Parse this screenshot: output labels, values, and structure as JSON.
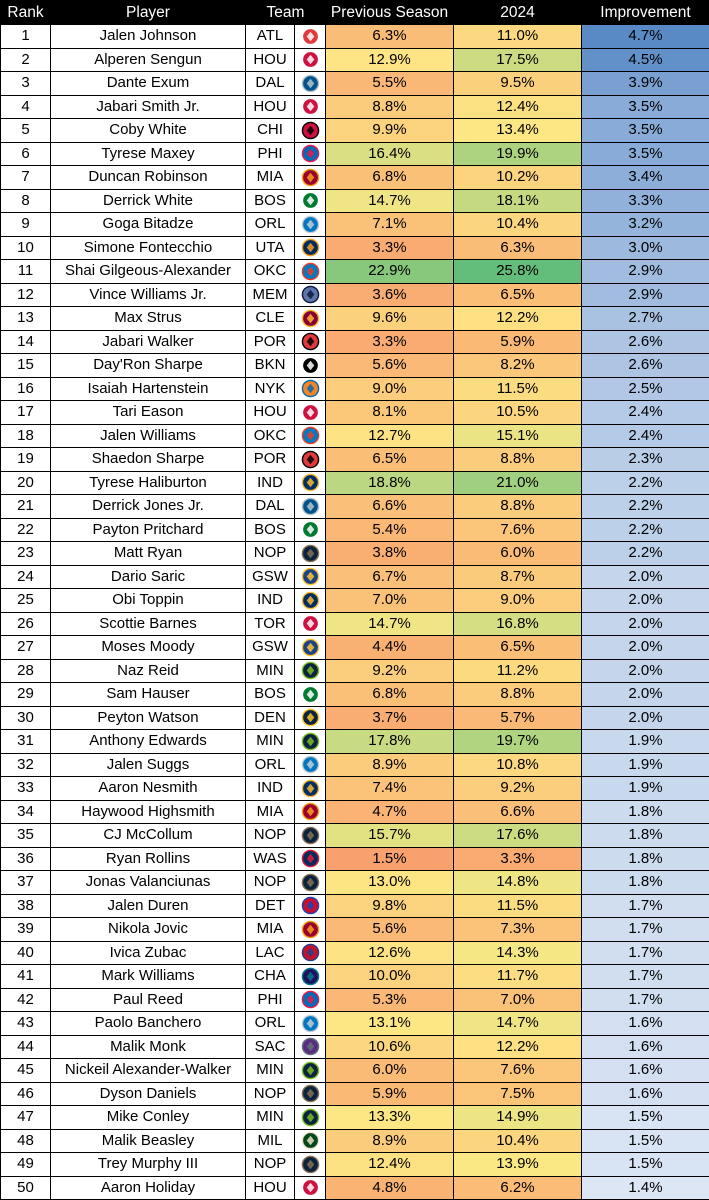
{
  "chart_data": {
    "type": "table",
    "columns": [
      "Rank",
      "Player",
      "Team",
      "",
      "Previous Season",
      "2024",
      "Improvement"
    ],
    "rows": [
      {
        "rank": "1",
        "player": "Jalen Johnson",
        "team": "ATL",
        "prev": "6.3%",
        "cur": "11.0%",
        "imp": "4.7%"
      },
      {
        "rank": "2",
        "player": "Alperen Sengun",
        "team": "HOU",
        "prev": "12.9%",
        "cur": "17.5%",
        "imp": "4.5%"
      },
      {
        "rank": "3",
        "player": "Dante Exum",
        "team": "DAL",
        "prev": "5.5%",
        "cur": "9.5%",
        "imp": "3.9%"
      },
      {
        "rank": "4",
        "player": "Jabari Smith Jr.",
        "team": "HOU",
        "prev": "8.8%",
        "cur": "12.4%",
        "imp": "3.5%"
      },
      {
        "rank": "5",
        "player": "Coby White",
        "team": "CHI",
        "prev": "9.9%",
        "cur": "13.4%",
        "imp": "3.5%"
      },
      {
        "rank": "6",
        "player": "Tyrese Maxey",
        "team": "PHI",
        "prev": "16.4%",
        "cur": "19.9%",
        "imp": "3.5%"
      },
      {
        "rank": "7",
        "player": "Duncan Robinson",
        "team": "MIA",
        "prev": "6.8%",
        "cur": "10.2%",
        "imp": "3.4%"
      },
      {
        "rank": "8",
        "player": "Derrick White",
        "team": "BOS",
        "prev": "14.7%",
        "cur": "18.1%",
        "imp": "3.3%"
      },
      {
        "rank": "9",
        "player": "Goga Bitadze",
        "team": "ORL",
        "prev": "7.1%",
        "cur": "10.4%",
        "imp": "3.2%"
      },
      {
        "rank": "10",
        "player": "Simone Fontecchio",
        "team": "UTA",
        "prev": "3.3%",
        "cur": "6.3%",
        "imp": "3.0%"
      },
      {
        "rank": "11",
        "player": "Shai Gilgeous-Alexander",
        "team": "OKC",
        "prev": "22.9%",
        "cur": "25.8%",
        "imp": "2.9%"
      },
      {
        "rank": "12",
        "player": "Vince Williams Jr.",
        "team": "MEM",
        "prev": "3.6%",
        "cur": "6.5%",
        "imp": "2.9%"
      },
      {
        "rank": "13",
        "player": "Max Strus",
        "team": "CLE",
        "prev": "9.6%",
        "cur": "12.2%",
        "imp": "2.7%"
      },
      {
        "rank": "14",
        "player": "Jabari Walker",
        "team": "POR",
        "prev": "3.3%",
        "cur": "5.9%",
        "imp": "2.6%"
      },
      {
        "rank": "15",
        "player": "Day'Ron Sharpe",
        "team": "BKN",
        "prev": "5.6%",
        "cur": "8.2%",
        "imp": "2.6%"
      },
      {
        "rank": "16",
        "player": "Isaiah Hartenstein",
        "team": "NYK",
        "prev": "9.0%",
        "cur": "11.5%",
        "imp": "2.5%"
      },
      {
        "rank": "17",
        "player": "Tari Eason",
        "team": "HOU",
        "prev": "8.1%",
        "cur": "10.5%",
        "imp": "2.4%"
      },
      {
        "rank": "18",
        "player": "Jalen Williams",
        "team": "OKC",
        "prev": "12.7%",
        "cur": "15.1%",
        "imp": "2.4%"
      },
      {
        "rank": "19",
        "player": "Shaedon Sharpe",
        "team": "POR",
        "prev": "6.5%",
        "cur": "8.8%",
        "imp": "2.3%"
      },
      {
        "rank": "20",
        "player": "Tyrese Haliburton",
        "team": "IND",
        "prev": "18.8%",
        "cur": "21.0%",
        "imp": "2.2%"
      },
      {
        "rank": "21",
        "player": "Derrick Jones Jr.",
        "team": "DAL",
        "prev": "6.6%",
        "cur": "8.8%",
        "imp": "2.2%"
      },
      {
        "rank": "22",
        "player": "Payton Pritchard",
        "team": "BOS",
        "prev": "5.4%",
        "cur": "7.6%",
        "imp": "2.2%"
      },
      {
        "rank": "23",
        "player": "Matt Ryan",
        "team": "NOP",
        "prev": "3.8%",
        "cur": "6.0%",
        "imp": "2.2%"
      },
      {
        "rank": "24",
        "player": "Dario Saric",
        "team": "GSW",
        "prev": "6.7%",
        "cur": "8.7%",
        "imp": "2.0%"
      },
      {
        "rank": "25",
        "player": "Obi Toppin",
        "team": "IND",
        "prev": "7.0%",
        "cur": "9.0%",
        "imp": "2.0%"
      },
      {
        "rank": "26",
        "player": "Scottie Barnes",
        "team": "TOR",
        "prev": "14.7%",
        "cur": "16.8%",
        "imp": "2.0%"
      },
      {
        "rank": "27",
        "player": "Moses Moody",
        "team": "GSW",
        "prev": "4.4%",
        "cur": "6.5%",
        "imp": "2.0%"
      },
      {
        "rank": "28",
        "player": "Naz Reid",
        "team": "MIN",
        "prev": "9.2%",
        "cur": "11.2%",
        "imp": "2.0%"
      },
      {
        "rank": "29",
        "player": "Sam Hauser",
        "team": "BOS",
        "prev": "6.8%",
        "cur": "8.8%",
        "imp": "2.0%"
      },
      {
        "rank": "30",
        "player": "Peyton Watson",
        "team": "DEN",
        "prev": "3.7%",
        "cur": "5.7%",
        "imp": "2.0%"
      },
      {
        "rank": "31",
        "player": "Anthony Edwards",
        "team": "MIN",
        "prev": "17.8%",
        "cur": "19.7%",
        "imp": "1.9%"
      },
      {
        "rank": "32",
        "player": "Jalen Suggs",
        "team": "ORL",
        "prev": "8.9%",
        "cur": "10.8%",
        "imp": "1.9%"
      },
      {
        "rank": "33",
        "player": "Aaron Nesmith",
        "team": "IND",
        "prev": "7.4%",
        "cur": "9.2%",
        "imp": "1.9%"
      },
      {
        "rank": "34",
        "player": "Haywood Highsmith",
        "team": "MIA",
        "prev": "4.7%",
        "cur": "6.6%",
        "imp": "1.8%"
      },
      {
        "rank": "35",
        "player": "CJ McCollum",
        "team": "NOP",
        "prev": "15.7%",
        "cur": "17.6%",
        "imp": "1.8%"
      },
      {
        "rank": "36",
        "player": "Ryan Rollins",
        "team": "WAS",
        "prev": "1.5%",
        "cur": "3.3%",
        "imp": "1.8%"
      },
      {
        "rank": "37",
        "player": "Jonas Valanciunas",
        "team": "NOP",
        "prev": "13.0%",
        "cur": "14.8%",
        "imp": "1.8%"
      },
      {
        "rank": "38",
        "player": "Jalen Duren",
        "team": "DET",
        "prev": "9.8%",
        "cur": "11.5%",
        "imp": "1.7%"
      },
      {
        "rank": "39",
        "player": "Nikola Jovic",
        "team": "MIA",
        "prev": "5.6%",
        "cur": "7.3%",
        "imp": "1.7%"
      },
      {
        "rank": "40",
        "player": "Ivica Zubac",
        "team": "LAC",
        "prev": "12.6%",
        "cur": "14.3%",
        "imp": "1.7%"
      },
      {
        "rank": "41",
        "player": "Mark Williams",
        "team": "CHA",
        "prev": "10.0%",
        "cur": "11.7%",
        "imp": "1.7%"
      },
      {
        "rank": "42",
        "player": "Paul Reed",
        "team": "PHI",
        "prev": "5.3%",
        "cur": "7.0%",
        "imp": "1.7%"
      },
      {
        "rank": "43",
        "player": "Paolo Banchero",
        "team": "ORL",
        "prev": "13.1%",
        "cur": "14.7%",
        "imp": "1.6%"
      },
      {
        "rank": "44",
        "player": "Malik Monk",
        "team": "SAC",
        "prev": "10.6%",
        "cur": "12.2%",
        "imp": "1.6%"
      },
      {
        "rank": "45",
        "player": "Nickeil Alexander-Walker",
        "team": "MIN",
        "prev": "6.0%",
        "cur": "7.6%",
        "imp": "1.6%"
      },
      {
        "rank": "46",
        "player": "Dyson Daniels",
        "team": "NOP",
        "prev": "5.9%",
        "cur": "7.5%",
        "imp": "1.6%"
      },
      {
        "rank": "47",
        "player": "Mike Conley",
        "team": "MIN",
        "prev": "13.3%",
        "cur": "14.9%",
        "imp": "1.5%"
      },
      {
        "rank": "48",
        "player": "Malik Beasley",
        "team": "MIL",
        "prev": "8.9%",
        "cur": "10.4%",
        "imp": "1.5%"
      },
      {
        "rank": "49",
        "player": "Trey Murphy III",
        "team": "NOP",
        "prev": "12.4%",
        "cur": "13.9%",
        "imp": "1.5%"
      },
      {
        "rank": "50",
        "player": "Aaron Holiday",
        "team": "HOU",
        "prev": "4.8%",
        "cur": "6.2%",
        "imp": "1.4%"
      }
    ]
  },
  "team_colors": {
    "ATL": {
      "primary": "#E03A3E",
      "secondary": "#ffffff",
      "icon": "atlanta-hawks-logo-icon"
    },
    "HOU": {
      "primary": "#CE1141",
      "secondary": "#ffffff",
      "icon": "houston-rockets-logo-icon"
    },
    "DAL": {
      "primary": "#00538C",
      "secondary": "#B8C4CA",
      "icon": "dallas-mavericks-logo-icon"
    },
    "CHI": {
      "primary": "#CE1141",
      "secondary": "#000000",
      "icon": "chicago-bulls-logo-icon"
    },
    "PHI": {
      "primary": "#006BB6",
      "secondary": "#ED174C",
      "icon": "philadelphia-76ers-logo-icon"
    },
    "MIA": {
      "primary": "#98002E",
      "secondary": "#F9A01B",
      "icon": "miami-heat-logo-icon"
    },
    "BOS": {
      "primary": "#007A33",
      "secondary": "#ffffff",
      "icon": "boston-celtics-logo-icon"
    },
    "ORL": {
      "primary": "#0077C0",
      "secondary": "#C4CED4",
      "icon": "orlando-magic-logo-icon"
    },
    "UTA": {
      "primary": "#002B5C",
      "secondary": "#F9A01B",
      "icon": "utah-jazz-logo-icon"
    },
    "OKC": {
      "primary": "#007AC1",
      "secondary": "#EF3B24",
      "icon": "okc-thunder-logo-icon"
    },
    "MEM": {
      "primary": "#5D76A9",
      "secondary": "#12173F",
      "icon": "memphis-grizzlies-logo-icon"
    },
    "CLE": {
      "primary": "#860038",
      "secondary": "#FDBB30",
      "icon": "cleveland-cavaliers-logo-icon"
    },
    "POR": {
      "primary": "#E03A3E",
      "secondary": "#000000",
      "icon": "portland-trail-blazers-logo-icon"
    },
    "BKN": {
      "primary": "#000000",
      "secondary": "#ffffff",
      "icon": "brooklyn-nets-logo-icon"
    },
    "NYK": {
      "primary": "#F58426",
      "secondary": "#006BB6",
      "icon": "new-york-knicks-logo-icon"
    },
    "IND": {
      "primary": "#002D62",
      "secondary": "#FDBB30",
      "icon": "indiana-pacers-logo-icon"
    },
    "NOP": {
      "primary": "#0C2340",
      "secondary": "#85714D",
      "icon": "new-orleans-pelicans-logo-icon"
    },
    "GSW": {
      "primary": "#1D428A",
      "secondary": "#FFC72C",
      "icon": "golden-state-warriors-logo-icon"
    },
    "TOR": {
      "primary": "#CE1141",
      "secondary": "#ffffff",
      "icon": "toronto-raptors-logo-icon"
    },
    "MIN": {
      "primary": "#0C2340",
      "secondary": "#78BE20",
      "icon": "minnesota-timberwolves-logo-icon"
    },
    "DEN": {
      "primary": "#0E2240",
      "secondary": "#FEC524",
      "icon": "denver-nuggets-logo-icon"
    },
    "WAS": {
      "primary": "#002B5C",
      "secondary": "#E31837",
      "icon": "washington-wizards-logo-icon"
    },
    "DET": {
      "primary": "#C8102E",
      "secondary": "#1D42BA",
      "icon": "detroit-pistons-logo-icon"
    },
    "LAC": {
      "primary": "#C8102E",
      "secondary": "#1D428A",
      "icon": "la-clippers-logo-icon"
    },
    "CHA": {
      "primary": "#1D1160",
      "secondary": "#00788C",
      "icon": "charlotte-hornets-logo-icon"
    },
    "SAC": {
      "primary": "#5A2D81",
      "secondary": "#63727A",
      "icon": "sacramento-kings-logo-icon"
    },
    "MIL": {
      "primary": "#00471B",
      "secondary": "#EEE1C6",
      "icon": "milwaukee-bucks-logo-icon"
    }
  },
  "colors": {
    "header_bg": "#000000",
    "header_text": "#ffffff",
    "scale_low": "#F8A06E",
    "scale_mid": "#FDE985",
    "scale_high": "#63BE7B",
    "imp_low": "#DCE6F4",
    "imp_high": "#5A8AC6"
  }
}
